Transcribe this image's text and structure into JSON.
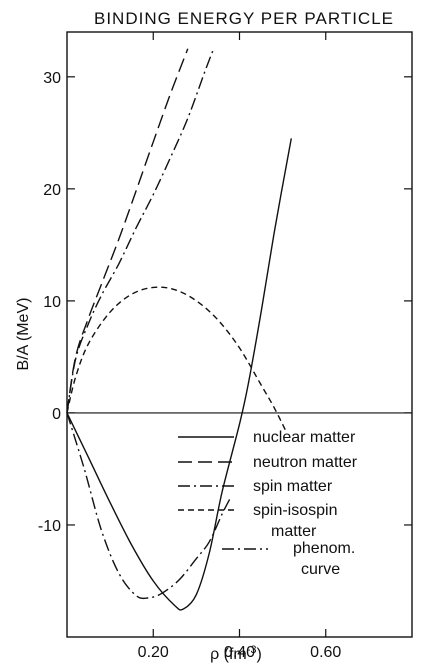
{
  "chart_data": {
    "type": "line",
    "title": "BINDING ENERGY PER PARTICLE",
    "xlabel": "ρ (fm",
    "xlabel_sup": "-3",
    "xlabel_close": ")",
    "ylabel": "B/A (MeV)",
    "xlim": [
      0.0,
      0.8
    ],
    "ylim": [
      -20,
      34
    ],
    "xticks": [
      {
        "v": 0.2,
        "label": "0.20"
      },
      {
        "v": 0.4,
        "label": "0.40"
      },
      {
        "v": 0.6,
        "label": "0.60"
      }
    ],
    "yticks": [
      {
        "v": 30,
        "label": "30"
      },
      {
        "v": 20,
        "label": "20"
      },
      {
        "v": 10,
        "label": "10"
      },
      {
        "v": 0,
        "label": "0"
      },
      {
        "v": -10,
        "label": "-10"
      }
    ],
    "grid": false,
    "zero_line": true,
    "series": [
      {
        "name": "nuclear matter",
        "dash": "",
        "x": [
          0.0,
          0.05,
          0.1,
          0.15,
          0.2,
          0.25,
          0.27,
          0.3,
          0.33,
          0.36,
          0.4,
          0.42,
          0.45,
          0.48,
          0.52
        ],
        "y": [
          0.0,
          -4.0,
          -8.0,
          -11.8,
          -15.0,
          -17.2,
          -17.5,
          -16.2,
          -12.5,
          -7.0,
          -1.0,
          2.5,
          9.0,
          16.0,
          24.5
        ]
      },
      {
        "name": "neutron matter",
        "dash": "14,6",
        "x": [
          0.0,
          0.02,
          0.05,
          0.08,
          0.12,
          0.16,
          0.2,
          0.24,
          0.28
        ],
        "y": [
          0.0,
          5.0,
          8.5,
          11.5,
          15.5,
          19.8,
          24.2,
          28.5,
          32.5
        ]
      },
      {
        "name": "spin matter",
        "dash": "12,4,2,4",
        "x": [
          0.0,
          0.02,
          0.05,
          0.08,
          0.12,
          0.16,
          0.2,
          0.24,
          0.28,
          0.32,
          0.34
        ],
        "y": [
          0.0,
          4.8,
          8.0,
          10.5,
          13.3,
          16.5,
          19.5,
          22.8,
          26.3,
          30.5,
          32.5
        ]
      },
      {
        "name": "spin-isospin",
        "name2": "matter",
        "dash": "6,4",
        "x": [
          0.0,
          0.02,
          0.05,
          0.1,
          0.15,
          0.2,
          0.25,
          0.3,
          0.35,
          0.4,
          0.45,
          0.48,
          0.51
        ],
        "y": [
          0.0,
          3.2,
          6.2,
          9.0,
          10.6,
          11.2,
          11.0,
          10.0,
          8.3,
          5.8,
          2.5,
          0.5,
          -1.8
        ]
      },
      {
        "name": "phenom.",
        "name2": "curve",
        "dash": "12,4,2,4",
        "x": [
          0.0,
          0.04,
          0.08,
          0.12,
          0.16,
          0.19,
          0.22,
          0.26,
          0.3,
          0.33,
          0.36,
          0.38
        ],
        "y": [
          0.0,
          -5.0,
          -10.5,
          -14.3,
          -16.3,
          -16.5,
          -16.1,
          -14.9,
          -13.0,
          -11.5,
          -9.0,
          -7.5
        ]
      }
    ]
  }
}
